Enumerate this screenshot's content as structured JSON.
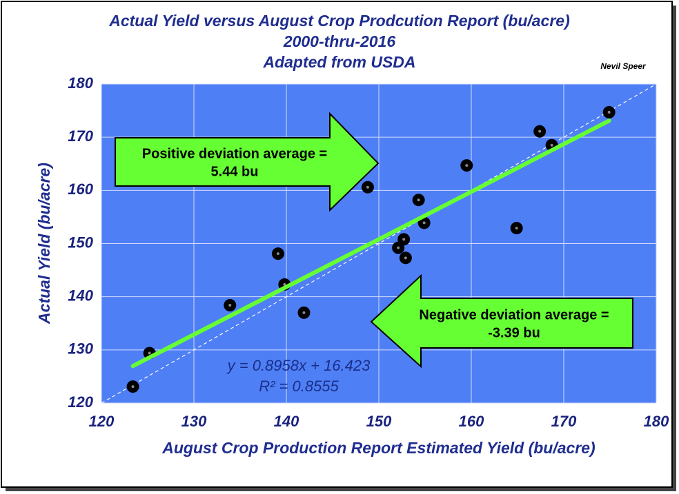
{
  "chart_data": {
    "type": "scatter",
    "title": [
      "Actual Yield versus August Crop Prodcution Report (bu/acre)",
      "2000-thru-2016",
      "Adapted from USDA"
    ],
    "author": "Nevil Speer",
    "x_label": "August Crop Production Report Estimated Yield (bu/acre)",
    "y_label": "Actual Yield (bu/acre)",
    "xlim": [
      120,
      180
    ],
    "ylim": [
      120,
      180
    ],
    "xticks": [
      120,
      130,
      140,
      150,
      160,
      170,
      180
    ],
    "yticks": [
      120,
      130,
      140,
      150,
      160,
      170,
      180
    ],
    "grid": true,
    "color": "#000000",
    "background": "#4f7ff5",
    "x": [
      123.4,
      125.2,
      133.9,
      139.1,
      139.8,
      141.9,
      148.8,
      152.1,
      152.7,
      152.9,
      154.3,
      154.9,
      159.5,
      164.9,
      167.4,
      168.7,
      174.9
    ],
    "values": [
      123.1,
      129.4,
      138.4,
      148.1,
      142.3,
      137.0,
      160.6,
      149.2,
      150.8,
      147.3,
      158.2,
      153.9,
      164.7,
      152.9,
      171.1,
      168.5,
      174.7
    ],
    "trendline": {
      "slope": 0.8958,
      "intercept": 16.423,
      "r2": 0.8555,
      "color": "#66ff33",
      "equation": "y = 0.8958x + 16.423",
      "r2_label": "R² = 0.8555"
    },
    "annotations": [
      {
        "text": [
          "Positive deviation average =",
          "5.44 bu"
        ],
        "value": 5.44
      },
      {
        "text": [
          "Negative deviation average =",
          "-3.39 bu"
        ],
        "value": -3.39
      }
    ]
  }
}
